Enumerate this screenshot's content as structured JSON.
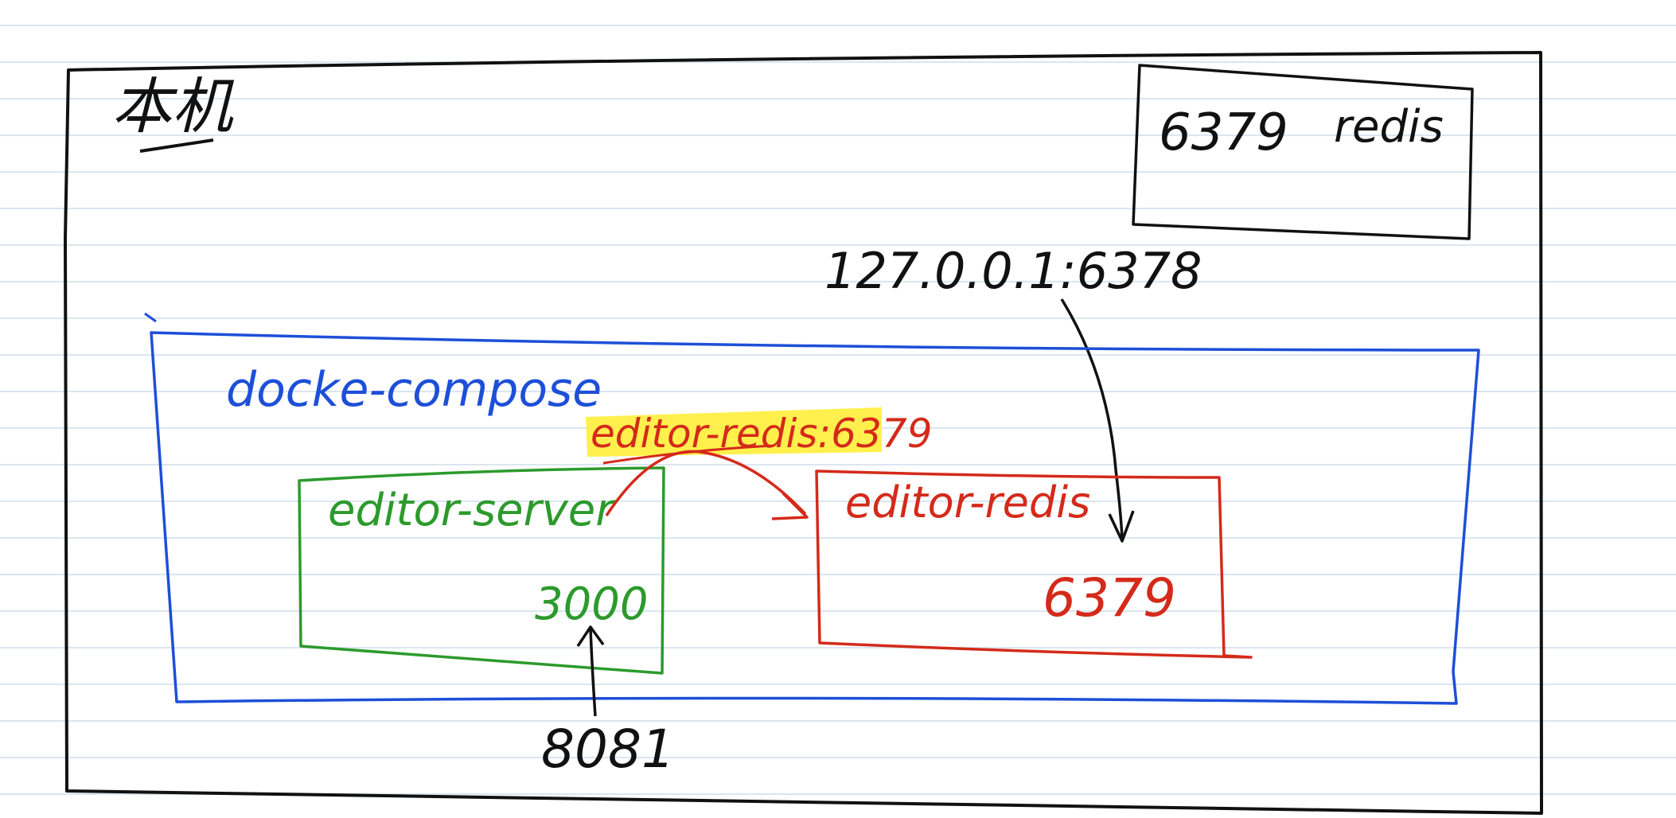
{
  "colors": {
    "paper": "#ffffff",
    "ruled_line": "#dbe6f0",
    "ink_black": "#111111",
    "ink_blue": "#1d4fd8",
    "ink_green": "#2c9a2c",
    "ink_red": "#d42a1a",
    "highlight_yellow": "#ffee3a"
  },
  "diagram": {
    "host_label": "本机",
    "host_redis": {
      "port": "6379",
      "name": "redis"
    },
    "host_address": "127.0.0.1:6378",
    "compose_label": "docke-compose",
    "link_label": "editor-redis:6379",
    "server_container": {
      "name": "editor-server",
      "port": "3000"
    },
    "redis_container": {
      "name": "editor-redis",
      "port": "6379"
    },
    "exposed_port": "8081"
  }
}
